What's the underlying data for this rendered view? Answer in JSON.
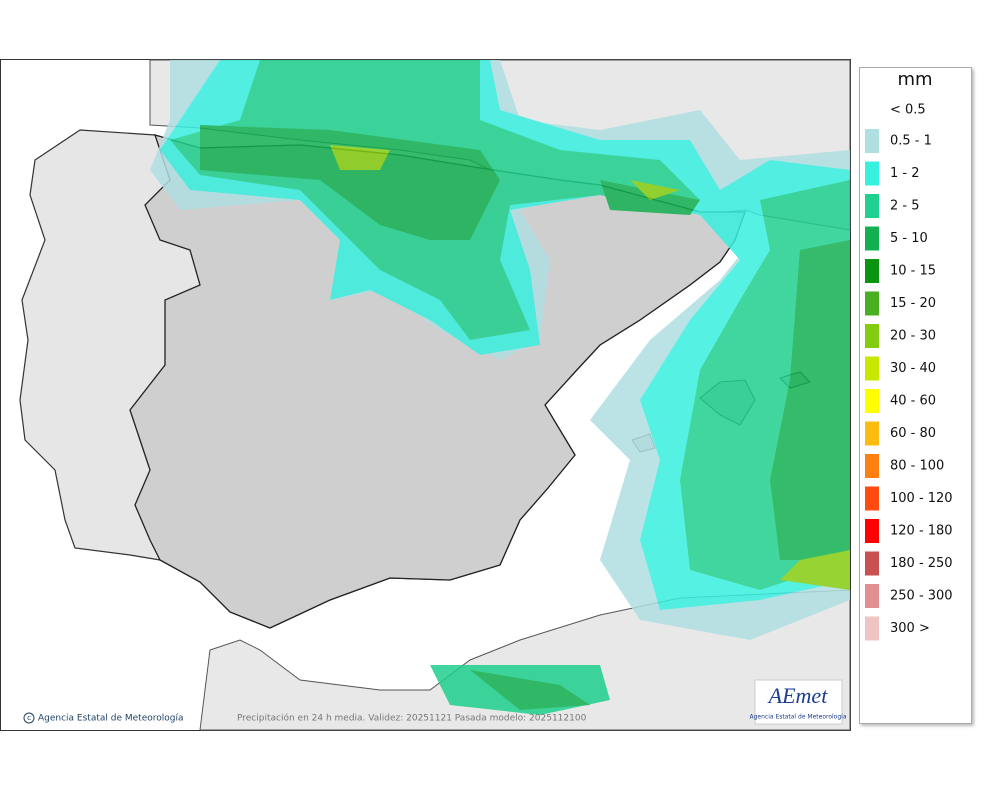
{
  "legend": {
    "title": "mm",
    "below_label": "< 0.5",
    "items": [
      {
        "label": "0.5 - 1",
        "color": "#b0dfe2"
      },
      {
        "label": "1 - 2",
        "color": "#38f0e0"
      },
      {
        "label": "2 - 5",
        "color": "#1fd08e"
      },
      {
        "label": "5 - 10",
        "color": "#12b050"
      },
      {
        "label": "10 - 15",
        "color": "#0a9410"
      },
      {
        "label": "15 - 20",
        "color": "#48b020"
      },
      {
        "label": "20 - 30",
        "color": "#84cc10"
      },
      {
        "label": "30 - 40",
        "color": "#c8e800"
      },
      {
        "label": "40 - 60",
        "color": "#ffff00"
      },
      {
        "label": "60 - 80",
        "color": "#ffbc10"
      },
      {
        "label": "80 - 100",
        "color": "#ff8010"
      },
      {
        "label": "100 - 120",
        "color": "#ff4a10"
      },
      {
        "label": "120 - 180",
        "color": "#ff0000"
      },
      {
        "label": "180 - 250",
        "color": "#c85050"
      },
      {
        "label": "250 - 300",
        "color": "#e09090"
      },
      {
        "label": "300 >",
        "color": "#f0c4c4"
      }
    ]
  },
  "footer": {
    "credit": "Agencia Estatal de Meteorología",
    "caption": "Precipitación en 24 h media. Validez: 20251121 Pasada modelo: 2025112100"
  },
  "logo": {
    "name": "AEmet",
    "subtitle": "Agencia Estatal de Meteorología"
  }
}
